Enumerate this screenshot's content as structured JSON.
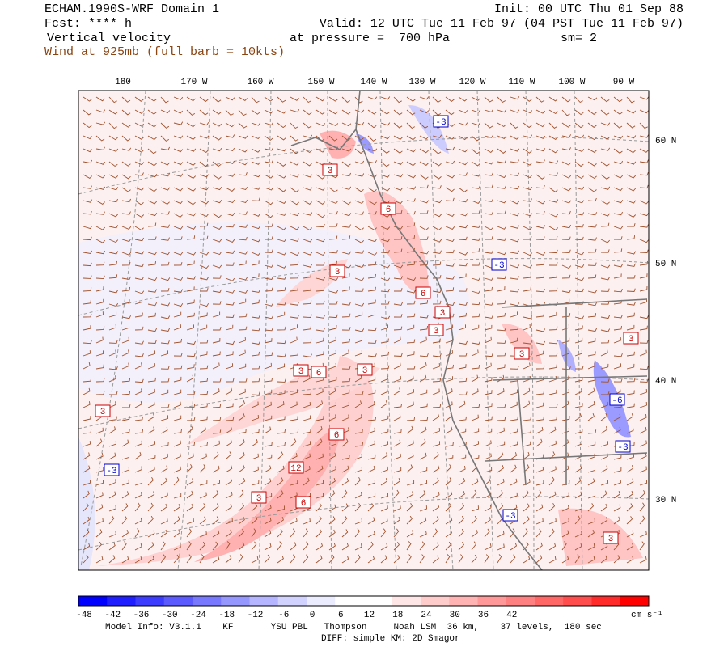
{
  "header": {
    "title": "ECHAM.1990S-WRF Domain 1",
    "forecast": "Fcst: **** h",
    "field": "Vertical velocity",
    "wind": "Wind at 925mb (full barb = 10kts)",
    "init": "Init: 00 UTC Thu 01 Sep 88",
    "valid": "Valid: 12 UTC Tue 11 Feb 97 (04 PST Tue 11 Feb 97)",
    "pressure": "at pressure =  700 hPa",
    "smoothing": "sm= 2"
  },
  "map": {
    "longitude_labels": [
      "180",
      "170 W",
      "160 W",
      "150 W",
      "140 W",
      "130 W",
      "120 W",
      "110 W",
      "100 W",
      "90 W"
    ],
    "latitude_labels": [
      "60 N",
      "50 N",
      "40 N",
      "30 N"
    ],
    "contour_labels": [
      "-3",
      "3",
      "6",
      "-3",
      "3",
      "6",
      "3",
      "3",
      "3",
      "3",
      "3",
      "6",
      "3",
      "3",
      "-6",
      "6",
      "-3",
      "-3",
      "12",
      "3",
      "6",
      "-3",
      "3"
    ]
  },
  "colorbar": {
    "ticks": [
      -48,
      -42,
      -36,
      -30,
      -24,
      -18,
      -12,
      -6,
      0,
      6,
      12,
      18,
      24,
      30,
      36,
      42
    ],
    "colors": [
      "#0000ff",
      "#1e1eff",
      "#3c3cff",
      "#5a5aff",
      "#7878ff",
      "#9696ff",
      "#b4b4ff",
      "#d2d2ff",
      "#ececff",
      "#ffffff",
      "#ffffff",
      "#ffe6e6",
      "#ffcccc",
      "#ffb3b3",
      "#ff9999",
      "#ff8080",
      "#ff6666",
      "#ff4d4d",
      "#ff2a2a",
      "#ff0000"
    ],
    "unit": "cm s⁻¹"
  },
  "footer": {
    "model_info": "Model Info: V3.1.1    KF       YSU PBL   Thompson     Noah LSM  36 km,    37 levels,  180 sec",
    "diff": "DIFF: simple KM: 2D Smagor"
  }
}
